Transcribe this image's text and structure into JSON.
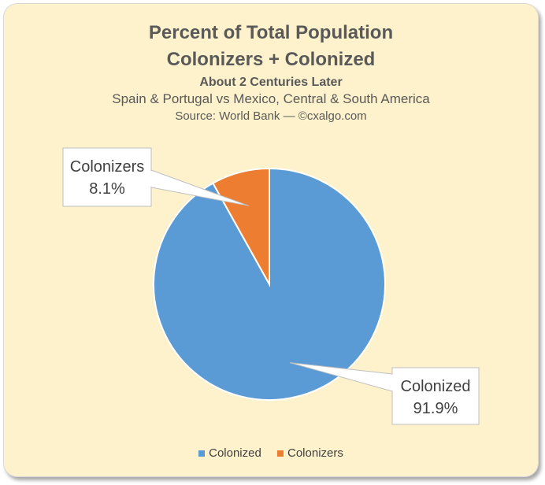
{
  "chart_data": {
    "type": "pie",
    "title_lines": [
      "Percent of Total Population",
      "Colonizers + Colonized"
    ],
    "subtitle": "About 2 Centuries Later",
    "subtitle2": "Spain & Portugal vs Mexico, Central & South America",
    "source": "Source: World Bank — ©cxalgo.com",
    "categories": [
      "Colonized",
      "Colonizers"
    ],
    "values": [
      91.9,
      8.1
    ],
    "data_labels": [
      "91.9%",
      "8.1%"
    ],
    "colors": [
      "#5b9bd5",
      "#ed7d31"
    ],
    "legend_position": "bottom"
  }
}
